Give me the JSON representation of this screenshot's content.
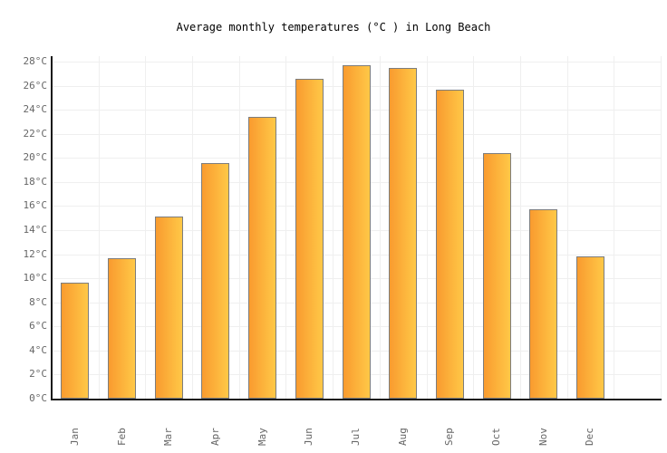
{
  "chart_data": {
    "type": "bar",
    "title": "Average monthly temperatures (°C ) in Long Beach",
    "categories": [
      "Jan",
      "Feb",
      "Mar",
      "Apr",
      "May",
      "Jun",
      "Jul",
      "Aug",
      "Sep",
      "Oct",
      "Nov",
      "Dec"
    ],
    "values": [
      9.6,
      11.7,
      15.1,
      19.6,
      23.4,
      26.6,
      27.7,
      27.5,
      25.7,
      20.4,
      15.7,
      11.8
    ],
    "xlabel": "",
    "ylabel": "",
    "ylim": [
      0,
      28
    ],
    "ytick_step": 2,
    "ytick_unit": "°C",
    "ytick_labels": [
      "0°C",
      "2°C",
      "4°C",
      "6°C",
      "8°C",
      "10°C",
      "12°C",
      "14°C",
      "16°C",
      "18°C",
      "20°C",
      "22°C",
      "24°C",
      "26°C",
      "28°C"
    ],
    "grid": "on",
    "legend": "none",
    "colors": {
      "bar_gradient_left": "#f99b2f",
      "bar_gradient_right": "#ffc847",
      "bar_border": "#7d7d7d",
      "gridline": "#efefef",
      "axis": "#1a1a1a",
      "tick_text": "#666666",
      "title_text": "#000000",
      "background": "#ffffff"
    }
  }
}
